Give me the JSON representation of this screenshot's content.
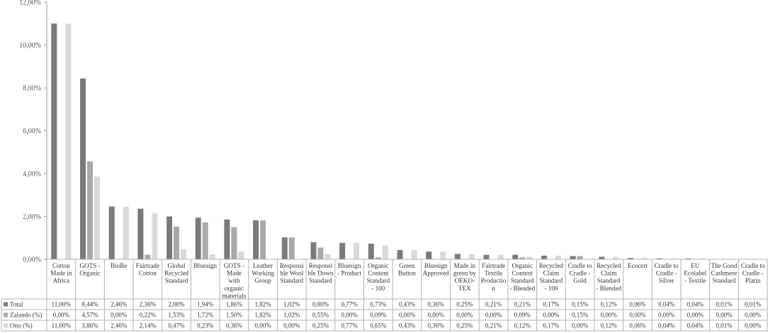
{
  "chart_data": {
    "type": "bar",
    "title": "",
    "xlabel": "",
    "ylabel": "",
    "ylim": [
      0,
      12
    ],
    "yticks": [
      "0,00%",
      "2,00%",
      "4,00%",
      "6,00%",
      "8,00%",
      "10,00%",
      "12,00%"
    ],
    "grid": false,
    "legend": "data-table",
    "categories": [
      [
        "Cotton",
        "Made in",
        "Africa"
      ],
      [
        "GOTS -",
        "Organic"
      ],
      [
        "BioRe"
      ],
      [
        "Fairtrade",
        "Cotton"
      ],
      [
        "Global",
        "Recycled",
        "Standard"
      ],
      [
        "Bluesign"
      ],
      [
        "GOTS -",
        "Made",
        "with",
        "organic",
        "materials"
      ],
      [
        "Leather",
        "Working",
        "Group"
      ],
      [
        "Responsi",
        "ble Wool",
        "Standard"
      ],
      [
        "Responsi",
        "ble Down",
        "Standard"
      ],
      [
        "Bluesign",
        "- Product"
      ],
      [
        "Organic",
        "Content",
        "Standard",
        "- 100"
      ],
      [
        "Green",
        "Button"
      ],
      [
        "Bluesign",
        "Approved"
      ],
      [
        "Made in",
        "green by",
        "OEKO-",
        "TEX"
      ],
      [
        "Fairtrade",
        "Textile",
        "Productio",
        "n"
      ],
      [
        "Organic",
        "Content",
        "Standard",
        "- Blended"
      ],
      [
        "Recycled",
        "Claim",
        "Standard",
        "- 100"
      ],
      [
        "Cradle to",
        "Cradle -",
        "Gold"
      ],
      [
        "Recycled",
        "Claim",
        "Standard",
        "- Blended"
      ],
      [
        "Ecocert"
      ],
      [
        "Cradle to",
        "Cradle -",
        "Silver"
      ],
      [
        "EU",
        "Ecolabel",
        "- Textile"
      ],
      [
        "The Good",
        "Cashmere",
        "Standard"
      ],
      [
        "Cradle to",
        "Cradle -",
        "Platin"
      ]
    ],
    "series": [
      {
        "name": "Total",
        "color": "#7a7a7a",
        "values": [
          11.0,
          8.44,
          2.46,
          2.36,
          2.0,
          1.94,
          1.86,
          1.82,
          1.02,
          0.8,
          0.77,
          0.73,
          0.43,
          0.36,
          0.25,
          0.21,
          0.21,
          0.17,
          0.15,
          0.12,
          0.06,
          0.04,
          0.04,
          0.01,
          0.01
        ],
        "labels": [
          "11,00%",
          "8,44%",
          "2,46%",
          "2,36%",
          "2,00%",
          "1,94%",
          "1,86%",
          "1,82%",
          "1,02%",
          "0,80%",
          "0,77%",
          "0,73%",
          "0,43%",
          "0,36%",
          "0,25%",
          "0,21%",
          "0,21%",
          "0,17%",
          "0,15%",
          "0,12%",
          "0,06%",
          "0,04%",
          "0,04%",
          "0,01%",
          "0,01%"
        ]
      },
      {
        "name": "Zalando (%)",
        "color": "#a9a9a9",
        "values": [
          0.0,
          4.57,
          0.0,
          0.22,
          1.53,
          1.72,
          1.5,
          1.82,
          1.02,
          0.55,
          0.0,
          0.09,
          0.0,
          0.0,
          0.0,
          0.0,
          0.09,
          0.0,
          0.15,
          0.0,
          0.0,
          0.0,
          0.0,
          0.0,
          0.0
        ],
        "labels": [
          "0,00%",
          "4,57%",
          "0,00%",
          "0,22%",
          "1,53%",
          "1,72%",
          "1,50%",
          "1,82%",
          "1,02%",
          "0,55%",
          "0,00%",
          "0,09%",
          "0,00%",
          "0,00%",
          "0,00%",
          "0,00%",
          "0,09%",
          "0,00%",
          "0,15%",
          "0,00%",
          "0,00%",
          "0,00%",
          "0,00%",
          "0,00%",
          "0,00%"
        ]
      },
      {
        "name": "Otto (%)",
        "color": "#d9d9d9",
        "values": [
          11.0,
          3.86,
          2.46,
          2.14,
          0.47,
          0.23,
          0.36,
          0.0,
          0.0,
          0.25,
          0.77,
          0.65,
          0.43,
          0.36,
          0.25,
          0.21,
          0.12,
          0.17,
          0.0,
          0.12,
          0.06,
          0.04,
          0.04,
          0.01,
          0.0
        ],
        "labels": [
          "11,00%",
          "3,86%",
          "2,46%",
          "2,14%",
          "0,47%",
          "0,23%",
          "0,36%",
          "0,00%",
          "0,00%",
          "0,25%",
          "0,77%",
          "0,65%",
          "0,43%",
          "0,36%",
          "0,25%",
          "0,21%",
          "0,12%",
          "0,17%",
          "0,00%",
          "0,12%",
          "0,06%",
          "0,04%",
          "0,04%",
          "0,01%",
          "0,00%"
        ]
      }
    ]
  }
}
